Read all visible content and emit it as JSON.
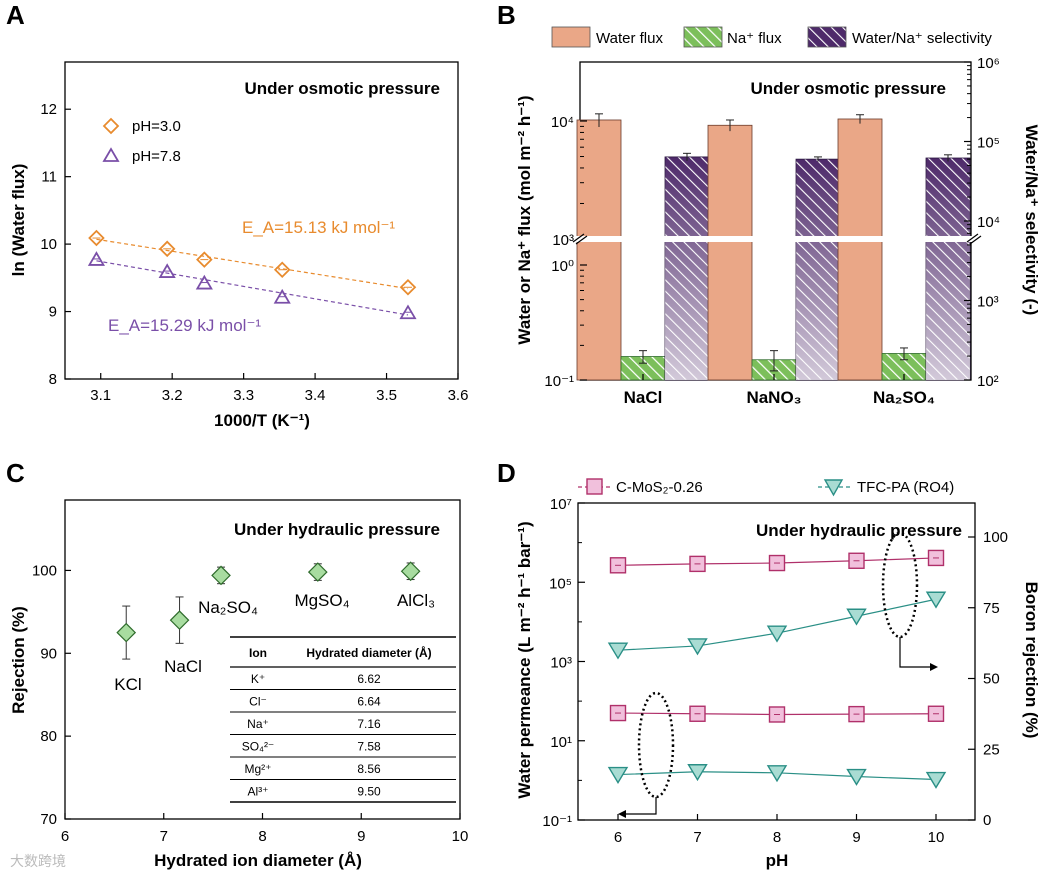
{
  "panels": {
    "a": "A",
    "b": "B",
    "c": "C",
    "d": "D"
  },
  "watermark": "大数跨境",
  "chart_data": [
    {
      "id": "A",
      "type": "scatter",
      "annotation": "Under osmotic pressure",
      "xlabel": "1000/T (K⁻¹)",
      "ylabel": "ln (Water flux)",
      "xlim": [
        3.05,
        3.6
      ],
      "ylim": [
        8,
        12.7
      ],
      "xticks": [
        "3.1",
        "3.2",
        "3.3",
        "3.4",
        "3.5",
        "3.6"
      ],
      "yticks": [
        "8",
        "9",
        "10",
        "11",
        "12"
      ],
      "series": [
        {
          "name": "pH=3.0",
          "color": "#e88b2e",
          "marker": "diamond",
          "x": [
            3.094,
            3.193,
            3.245,
            3.354,
            3.53
          ],
          "y": [
            10.09,
            9.93,
            9.77,
            9.62,
            9.36
          ],
          "fit_label": "E_A=15.13 kJ mol⁻¹"
        },
        {
          "name": "pH=7.8",
          "color": "#7a4fa8",
          "marker": "triangle",
          "x": [
            3.094,
            3.193,
            3.245,
            3.354,
            3.53
          ],
          "y": [
            9.78,
            9.6,
            9.43,
            9.22,
            8.99
          ],
          "fit_label": "E_A=15.29 kJ mol⁻¹"
        }
      ]
    },
    {
      "id": "B",
      "type": "bar",
      "annotation": "Under osmotic pressure",
      "categories": [
        "NaCl",
        "NaNO₃",
        "Na₂SO₄"
      ],
      "ylabel_left": "Water or Na⁺ flux (mol m⁻² h⁻¹)",
      "ylabel_right": "Water/Na⁺ selectivity (-)",
      "left_ticks": [
        "10⁴",
        "10³",
        "10⁰",
        "10⁻¹"
      ],
      "right_ticks": [
        "10⁶",
        "10⁵",
        "10⁴",
        "10³",
        "10²"
      ],
      "series": [
        {
          "name": "Water flux",
          "color": "#eaa787",
          "values": [
            10200,
            9200,
            10400
          ],
          "err": [
            1300,
            1000,
            900
          ]
        },
        {
          "name": "Na⁺ flux",
          "color": "#7cbf5b",
          "values": [
            0.16,
            0.15,
            0.17
          ],
          "err": [
            0.02,
            0.03,
            0.02
          ]
        },
        {
          "name": "Water/Na⁺ selectivity",
          "color": "#4e2a6a",
          "values": [
            64000,
            60000,
            62000
          ],
          "err": [
            7000,
            4000,
            6000
          ]
        }
      ]
    },
    {
      "id": "C",
      "type": "scatter",
      "annotation": "Under hydraulic pressure",
      "xlabel": "Hydrated ion diameter (Å)",
      "ylabel": "Rejection (%)",
      "xlim": [
        6,
        10
      ],
      "ylim": [
        70,
        108.5
      ],
      "xticks": [
        "6",
        "7",
        "8",
        "9",
        "10"
      ],
      "yticks": [
        "70",
        "80",
        "90",
        "100"
      ],
      "points": [
        {
          "label": "KCl",
          "x": 6.62,
          "y": 92.5,
          "err": 3.2
        },
        {
          "label": "NaCl",
          "x": 7.16,
          "y": 94.0,
          "err": 2.8
        },
        {
          "label": "Na₂SO₄",
          "x": 7.58,
          "y": 99.4,
          "err": 1.0
        },
        {
          "label": "MgSO₄",
          "x": 8.56,
          "y": 99.8,
          "err": 1.0
        },
        {
          "label": "AlCl₃",
          "x": 9.5,
          "y": 99.9,
          "err": 1.0
        }
      ],
      "table": {
        "headers": [
          "Ion",
          "Hydrated diameter (Å)"
        ],
        "rows": [
          [
            "K⁺",
            "6.62"
          ],
          [
            "Cl⁻",
            "6.64"
          ],
          [
            "Na⁺",
            "7.16"
          ],
          [
            "SO₄²⁻",
            "7.58"
          ],
          [
            "Mg²⁺",
            "8.56"
          ],
          [
            "Al³⁺",
            "9.50"
          ]
        ]
      }
    },
    {
      "id": "D",
      "type": "line",
      "annotation": "Under hydraulic pressure",
      "xlabel": "pH",
      "ylabel_left": "Water permeance (L m⁻² h⁻¹ bar⁻¹)",
      "ylabel_right": "Boron rejection (%)",
      "x": [
        6,
        7,
        8,
        9,
        10
      ],
      "xticks": [
        "6",
        "7",
        "8",
        "9",
        "10"
      ],
      "left_ticks": [
        "10⁷",
        "10⁵",
        "10³",
        "10¹",
        "10⁻¹"
      ],
      "right_ticks": [
        "100",
        "75",
        "50",
        "25",
        "0"
      ],
      "series": [
        {
          "name": "C-MoS₂-0.26",
          "color": "#b0306a",
          "fill": "#f1c0dc",
          "marker": "square",
          "axis": "right",
          "values": [
            90,
            90.5,
            90.8,
            91.6,
            92.6
          ]
        },
        {
          "name": "TFC-PA (RO4)",
          "color": "#2a8f86",
          "fill": "#a9dcd3",
          "marker": "triangle-down",
          "axis": "right",
          "values": [
            60,
            61.5,
            66,
            72,
            78
          ]
        },
        {
          "name": "C-MoS₂-0.26",
          "color": "#b0306a",
          "fill": "#f1c0dc",
          "marker": "square",
          "axis": "left",
          "values": [
            50,
            48,
            46,
            47,
            48
          ]
        },
        {
          "name": "TFC-PA (RO4)",
          "color": "#2a8f86",
          "fill": "#a9dcd3",
          "marker": "triangle-down",
          "axis": "left",
          "values": [
            1.4,
            1.65,
            1.55,
            1.25,
            1.05
          ]
        }
      ]
    }
  ]
}
